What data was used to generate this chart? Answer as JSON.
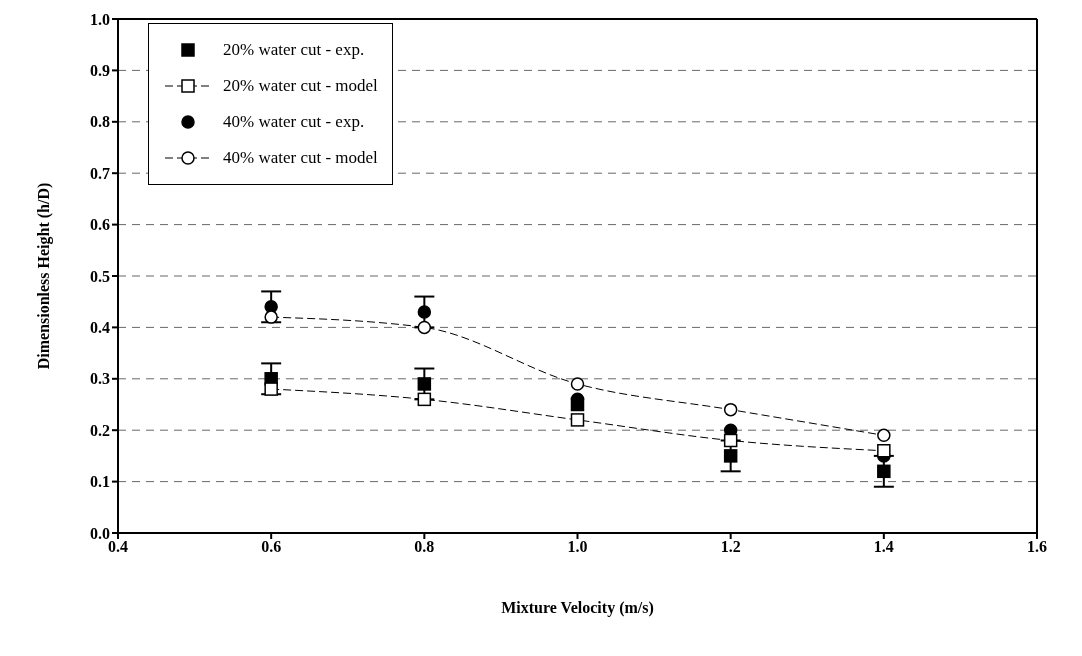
{
  "chart_data": {
    "type": "scatter",
    "xlabel": "Mixture Velocity (m/s)",
    "ylabel": "Dimensionless Height (h/D)",
    "x": [
      0.6,
      0.8,
      1.0,
      1.2,
      1.4
    ],
    "series": [
      {
        "name": "20% water cut - exp.",
        "color": "#000000",
        "marker": "square",
        "values": [
          0.3,
          0.29,
          0.25,
          0.15,
          0.12
        ],
        "errors": [
          0.03,
          0.03,
          null,
          0.03,
          0.03
        ]
      },
      {
        "name": "20% water cut - model",
        "type": "line",
        "color": "#000000",
        "marker": "square",
        "line_style": "dashed",
        "values": [
          0.28,
          0.26,
          0.22,
          0.18,
          0.16
        ]
      },
      {
        "name": "40% water cut - exp.",
        "color": "#000000",
        "marker": "circle",
        "values": [
          0.44,
          0.43,
          0.26,
          0.2,
          0.15
        ],
        "errors": [
          0.03,
          0.03,
          null,
          null,
          null
        ]
      },
      {
        "name": "40% water cut - model",
        "type": "line",
        "color": "#000000",
        "marker": "circle",
        "line_style": "dashed",
        "values": [
          0.42,
          0.4,
          0.29,
          0.24,
          0.19
        ]
      }
    ],
    "xlim": [
      0.4,
      1.6
    ],
    "xticks": [
      0.4,
      0.6,
      0.8,
      {
        "value": 1,
        "label": "1.0"
      },
      1.2,
      1.4,
      1.6
    ],
    "ylim": [
      0,
      1
    ],
    "yticks": [
      {
        "value": 0,
        "label": "0.0"
      },
      0.1,
      0.2,
      0.3,
      0.4,
      0.5,
      0.6,
      0.7,
      0.8,
      0.9,
      {
        "value": 1,
        "label": "1.0"
      }
    ],
    "grid": "y",
    "legend": "top left"
  }
}
